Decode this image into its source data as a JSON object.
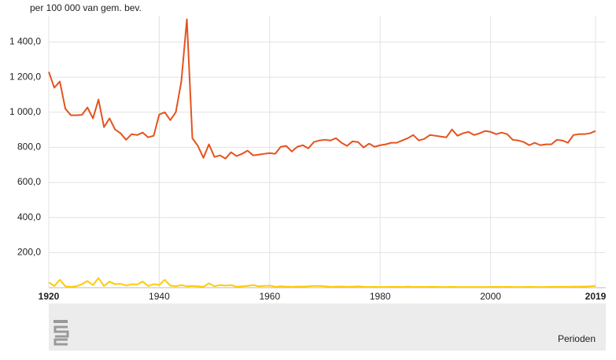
{
  "chart_data": {
    "type": "line",
    "y_label": "per 100 000 van gem. bev.",
    "x_label": "Perioden",
    "x": [
      1920,
      1921,
      1922,
      1923,
      1924,
      1925,
      1926,
      1927,
      1928,
      1929,
      1930,
      1931,
      1932,
      1933,
      1934,
      1935,
      1936,
      1937,
      1938,
      1939,
      1940,
      1941,
      1942,
      1943,
      1944,
      1945,
      1946,
      1947,
      1948,
      1949,
      1950,
      1951,
      1952,
      1953,
      1954,
      1955,
      1956,
      1957,
      1958,
      1959,
      1960,
      1961,
      1962,
      1963,
      1964,
      1965,
      1966,
      1967,
      1968,
      1969,
      1970,
      1971,
      1972,
      1973,
      1974,
      1975,
      1976,
      1977,
      1978,
      1979,
      1980,
      1981,
      1982,
      1983,
      1984,
      1985,
      1986,
      1987,
      1988,
      1989,
      1990,
      1991,
      1992,
      1993,
      1994,
      1995,
      1996,
      1997,
      1998,
      1999,
      2000,
      2001,
      2002,
      2003,
      2004,
      2005,
      2006,
      2007,
      2008,
      2009,
      2010,
      2011,
      2012,
      2013,
      2014,
      2015,
      2016,
      2017,
      2018,
      2019
    ],
    "series": [
      {
        "color": "#e5531e",
        "values": [
          1230,
          1140,
          1175,
          1020,
          983,
          983,
          985,
          1027,
          965,
          1072,
          915,
          965,
          902,
          880,
          843,
          875,
          870,
          884,
          857,
          866,
          987,
          1000,
          955,
          1000,
          1175,
          1530,
          852,
          808,
          740,
          817,
          745,
          754,
          736,
          772,
          750,
          763,
          781,
          754,
          758,
          763,
          767,
          763,
          803,
          808,
          776,
          803,
          812,
          794,
          830,
          839,
          843,
          839,
          852,
          826,
          808,
          834,
          830,
          799,
          821,
          803,
          812,
          817,
          826,
          826,
          839,
          852,
          870,
          839,
          848,
          870,
          866,
          861,
          857,
          902,
          866,
          880,
          888,
          870,
          880,
          893,
          888,
          875,
          884,
          875,
          843,
          839,
          830,
          812,
          826,
          812,
          817,
          817,
          843,
          839,
          826,
          870,
          875,
          875,
          880,
          893
        ]
      },
      {
        "color": "#ffcc00",
        "values": [
          30,
          10,
          45,
          8,
          5,
          8,
          20,
          38,
          15,
          55,
          10,
          35,
          20,
          22,
          12,
          20,
          18,
          35,
          10,
          20,
          15,
          45,
          12,
          8,
          15,
          8,
          10,
          8,
          5,
          25,
          8,
          15,
          12,
          15,
          5,
          8,
          10,
          15,
          8,
          10,
          12,
          5,
          8,
          6,
          5,
          7,
          6,
          8,
          10,
          10,
          8,
          5,
          6,
          7,
          5,
          6,
          8,
          5,
          4,
          5,
          4,
          4,
          5,
          5,
          4,
          6,
          4,
          5,
          4,
          5,
          5,
          4,
          4,
          5,
          4,
          4,
          4,
          4,
          4,
          4,
          4,
          5,
          4,
          5,
          4,
          4,
          4,
          5,
          4,
          4,
          4,
          5,
          5,
          5,
          5,
          6,
          6,
          7,
          8,
          10
        ]
      }
    ],
    "xlim": [
      1920,
      2019
    ],
    "xticks": [
      1920,
      1940,
      1960,
      1980,
      2000,
      2019
    ],
    "ylim": [
      0,
      1550
    ],
    "yticks": [
      {
        "value": 200,
        "label": "200,0"
      },
      {
        "value": 400,
        "label": "400,0"
      },
      {
        "value": 600,
        "label": "600,0"
      },
      {
        "value": 800,
        "label": "800,0"
      },
      {
        "value": 1000,
        "label": "1 000,0"
      },
      {
        "value": 1200,
        "label": "1 200,0"
      },
      {
        "value": 1400,
        "label": "1 400,0"
      }
    ],
    "grid": true
  }
}
